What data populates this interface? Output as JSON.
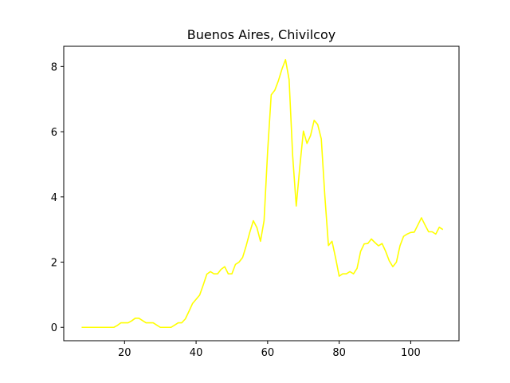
{
  "chart_data": {
    "type": "line",
    "title": "Buenos Aires, Chivilcoy",
    "xlabel": "",
    "ylabel": "",
    "xlim": [
      3.0,
      113.5
    ],
    "ylim": [
      -0.41,
      8.62
    ],
    "xticks": [
      20,
      40,
      60,
      80,
      100
    ],
    "yticks": [
      0,
      2,
      4,
      6,
      8
    ],
    "grid": false,
    "series": [
      {
        "color": "#ffff00",
        "x": [
          8,
          9,
          10,
          11,
          12,
          13,
          14,
          15,
          16,
          17,
          18,
          19,
          20,
          21,
          22,
          23,
          24,
          25,
          26,
          27,
          28,
          29,
          30,
          31,
          32,
          33,
          34,
          35,
          36,
          37,
          38,
          39,
          40,
          41,
          42,
          43,
          44,
          45,
          46,
          47,
          48,
          49,
          50,
          51,
          52,
          53,
          54,
          55,
          56,
          57,
          58,
          59,
          60,
          61,
          62,
          63,
          64,
          65,
          66,
          67,
          68,
          69,
          70,
          71,
          72,
          73,
          74,
          75,
          76,
          77,
          78,
          79,
          80,
          81,
          82,
          83,
          84,
          85,
          86,
          87,
          88,
          89,
          90,
          91,
          92,
          93,
          94,
          95,
          96,
          97,
          98,
          99,
          100,
          101,
          102,
          103,
          104,
          105,
          106,
          107,
          108,
          109
        ],
        "y": [
          0,
          0,
          0,
          0,
          0,
          0,
          0,
          0,
          0,
          0,
          0.06,
          0.14,
          0.14,
          0.14,
          0.2,
          0.28,
          0.28,
          0.21,
          0.14,
          0.14,
          0.14,
          0.07,
          0,
          0,
          0,
          0,
          0.07,
          0.14,
          0.14,
          0.26,
          0.49,
          0.73,
          0.86,
          0.99,
          1.3,
          1.63,
          1.71,
          1.64,
          1.64,
          1.78,
          1.86,
          1.64,
          1.64,
          1.93,
          2.0,
          2.14,
          2.5,
          2.91,
          3.27,
          3.06,
          2.64,
          3.27,
          5.4,
          7.13,
          7.27,
          7.56,
          7.92,
          8.21,
          7.6,
          5.26,
          3.72,
          4.93,
          6.02,
          5.64,
          5.88,
          6.35,
          6.22,
          5.78,
          4.02,
          2.51,
          2.64,
          2.13,
          1.57,
          1.64,
          1.64,
          1.71,
          1.64,
          1.81,
          2.33,
          2.56,
          2.57,
          2.71,
          2.6,
          2.5,
          2.57,
          2.33,
          2.04,
          1.86,
          2.0,
          2.5,
          2.79,
          2.86,
          2.91,
          2.92,
          3.14,
          3.36,
          3.14,
          2.93,
          2.93,
          2.86,
          3.07,
          3.0
        ]
      }
    ]
  }
}
